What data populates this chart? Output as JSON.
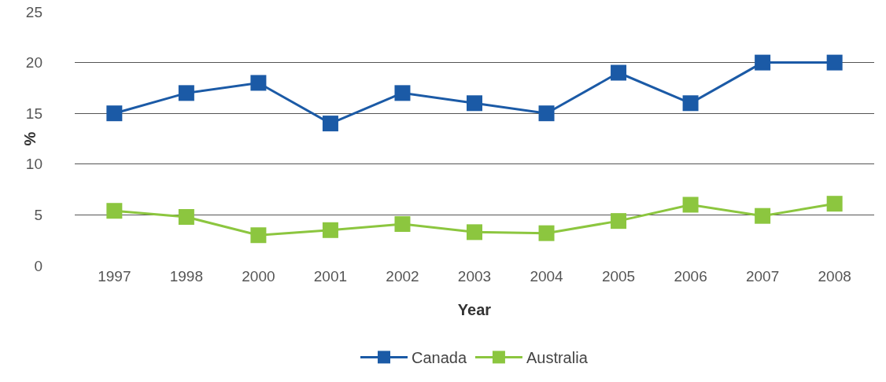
{
  "chart_data": {
    "type": "line",
    "xlabel": "Year",
    "ylabel": "%",
    "categories": [
      "1997",
      "1998",
      "2000",
      "2001",
      "2002",
      "2003",
      "2004",
      "2005",
      "2006",
      "2007",
      "2008"
    ],
    "series": [
      {
        "name": "Canada",
        "color": "#1b5aa6",
        "values": [
          15,
          17,
          18,
          14,
          17,
          16,
          15,
          19,
          16,
          20,
          20
        ]
      },
      {
        "name": "Australia",
        "color": "#8cc63f",
        "values": [
          5.4,
          4.8,
          3.0,
          3.5,
          4.1,
          3.3,
          3.2,
          4.4,
          6.0,
          4.9,
          6.1
        ]
      }
    ],
    "ylim": [
      0,
      25
    ],
    "yticks": [
      0,
      5,
      10,
      15,
      20,
      25
    ],
    "grid": "y",
    "legend": "bottom",
    "marker": "square",
    "line_style": "solid"
  }
}
